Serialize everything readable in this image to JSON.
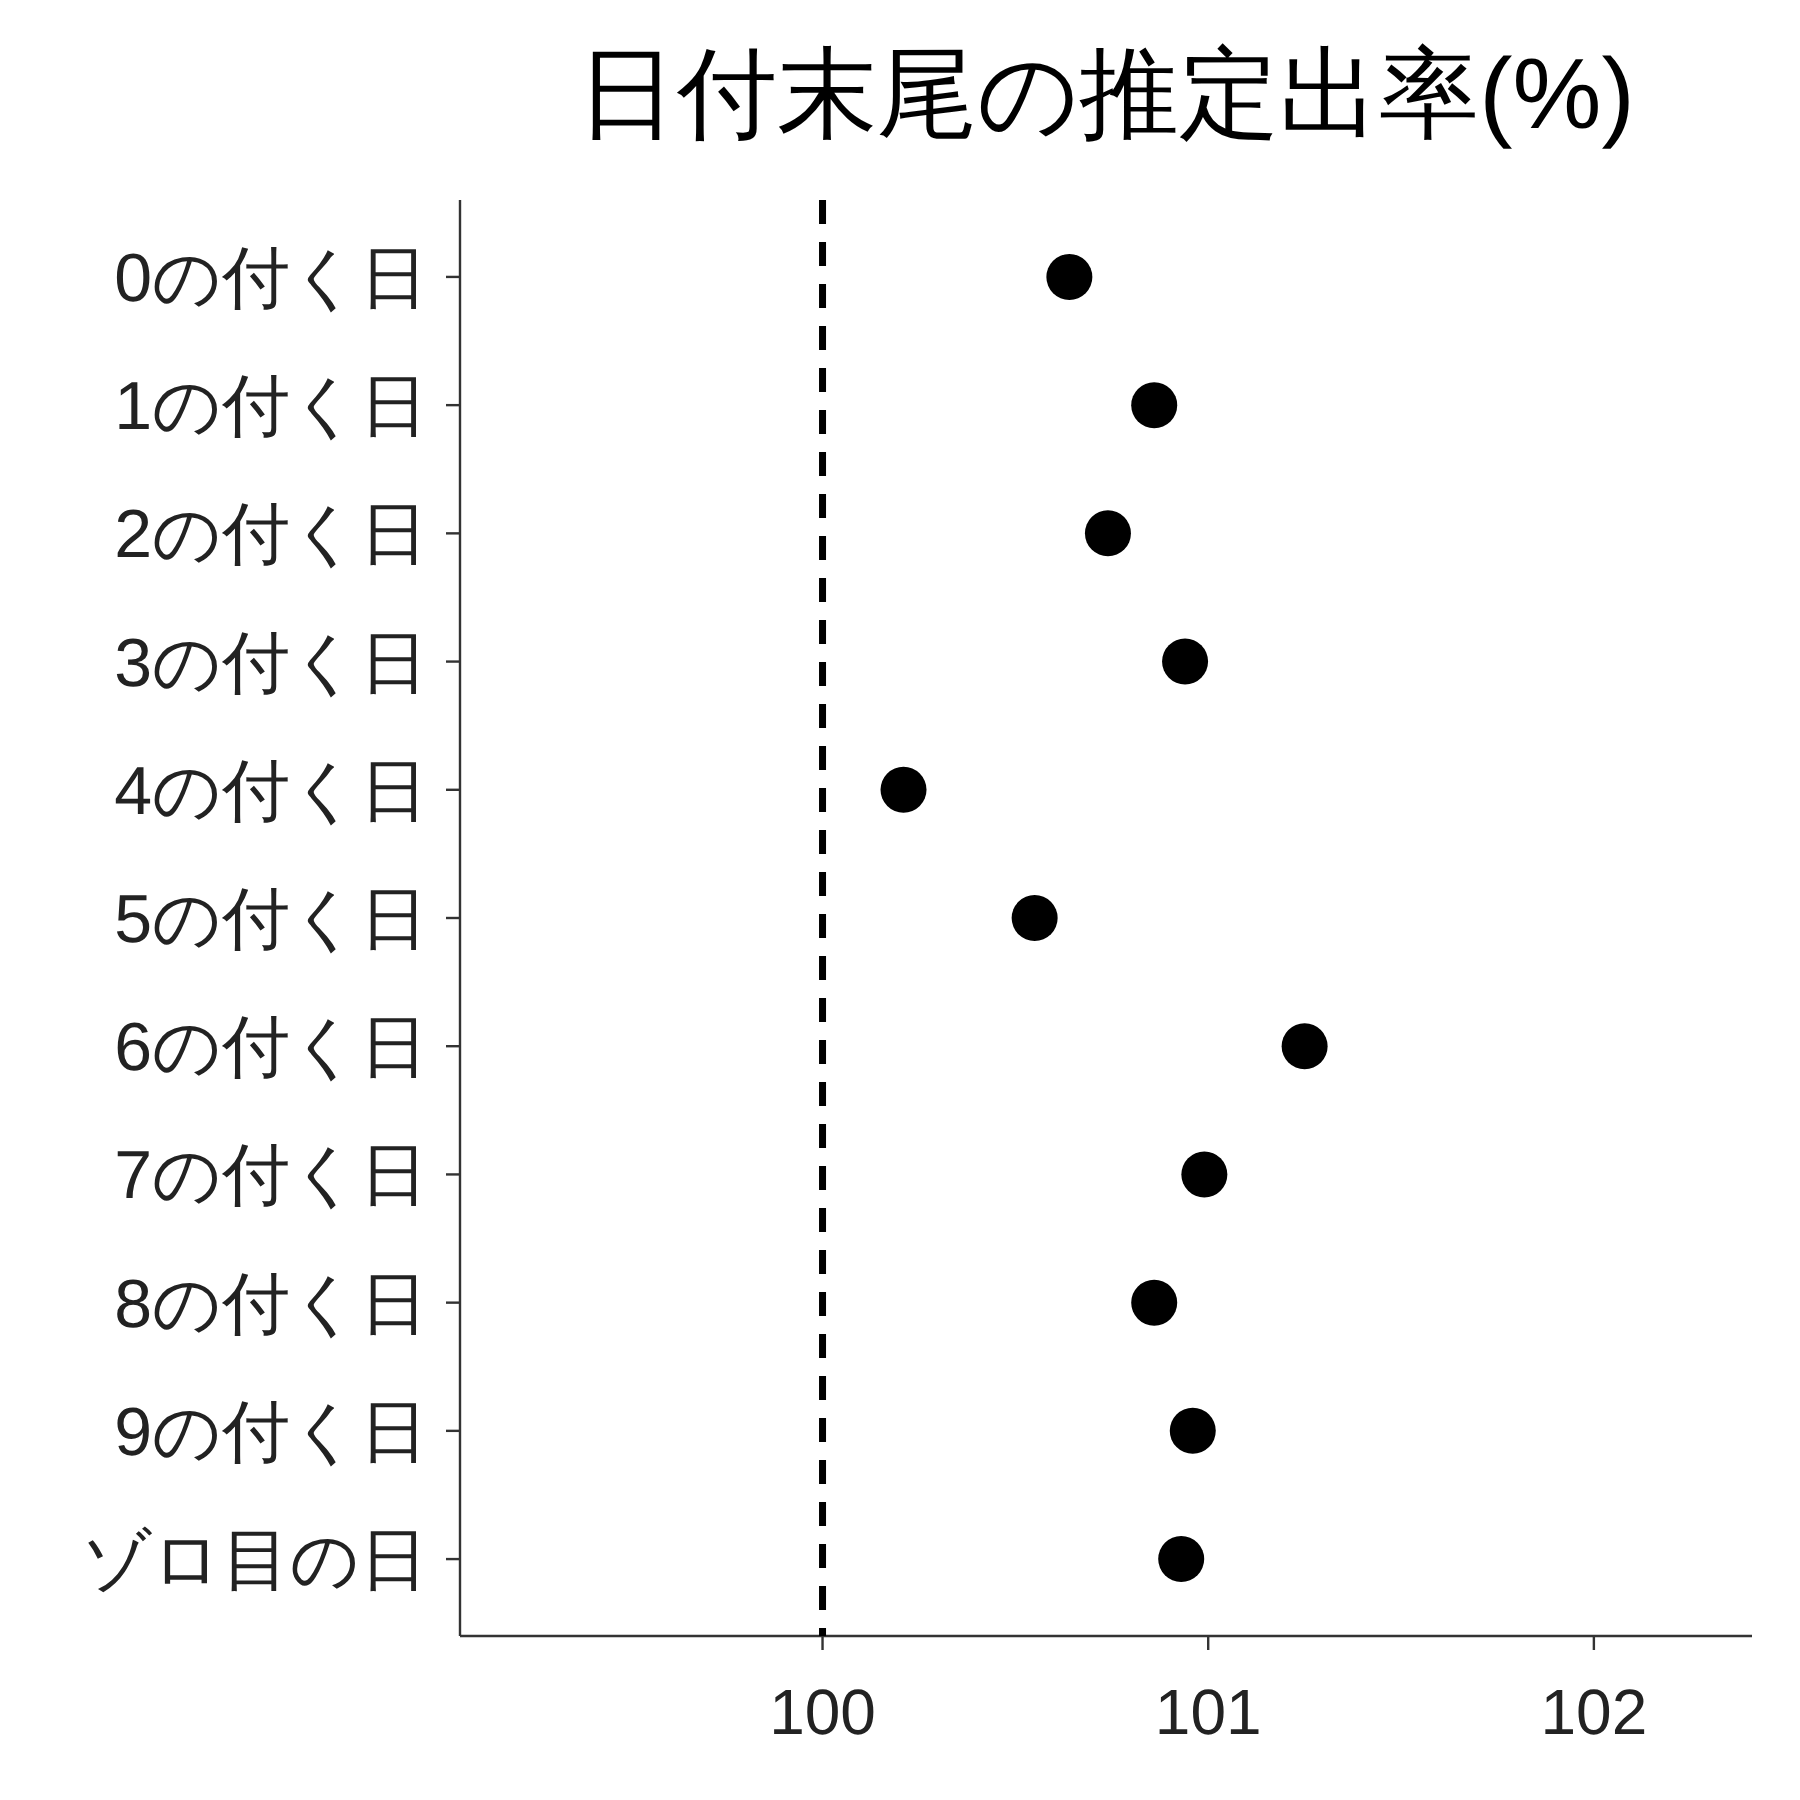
{
  "chart_data": {
    "type": "scatter",
    "title": "日付末尾の推定出率(%)",
    "orientation": "horizontal",
    "marker": "circle",
    "color": "#000000",
    "categories": [
      "0の付く日",
      "1の付く日",
      "2の付く日",
      "3の付く日",
      "4の付く日",
      "5の付く日",
      "6の付く日",
      "7の付く日",
      "8の付く日",
      "9の付く日",
      "ゾロ目の日"
    ],
    "values": [
      100.64,
      100.86,
      100.74,
      100.94,
      100.21,
      100.55,
      101.25,
      100.99,
      100.86,
      100.96,
      100.93
    ],
    "xlim": [
      99.06,
      102.41
    ],
    "xticks": [
      100,
      101,
      102
    ],
    "ref_lines": [
      {
        "axis": "x",
        "value": 100,
        "line_style": "dashed",
        "color": "#000000"
      }
    ]
  }
}
